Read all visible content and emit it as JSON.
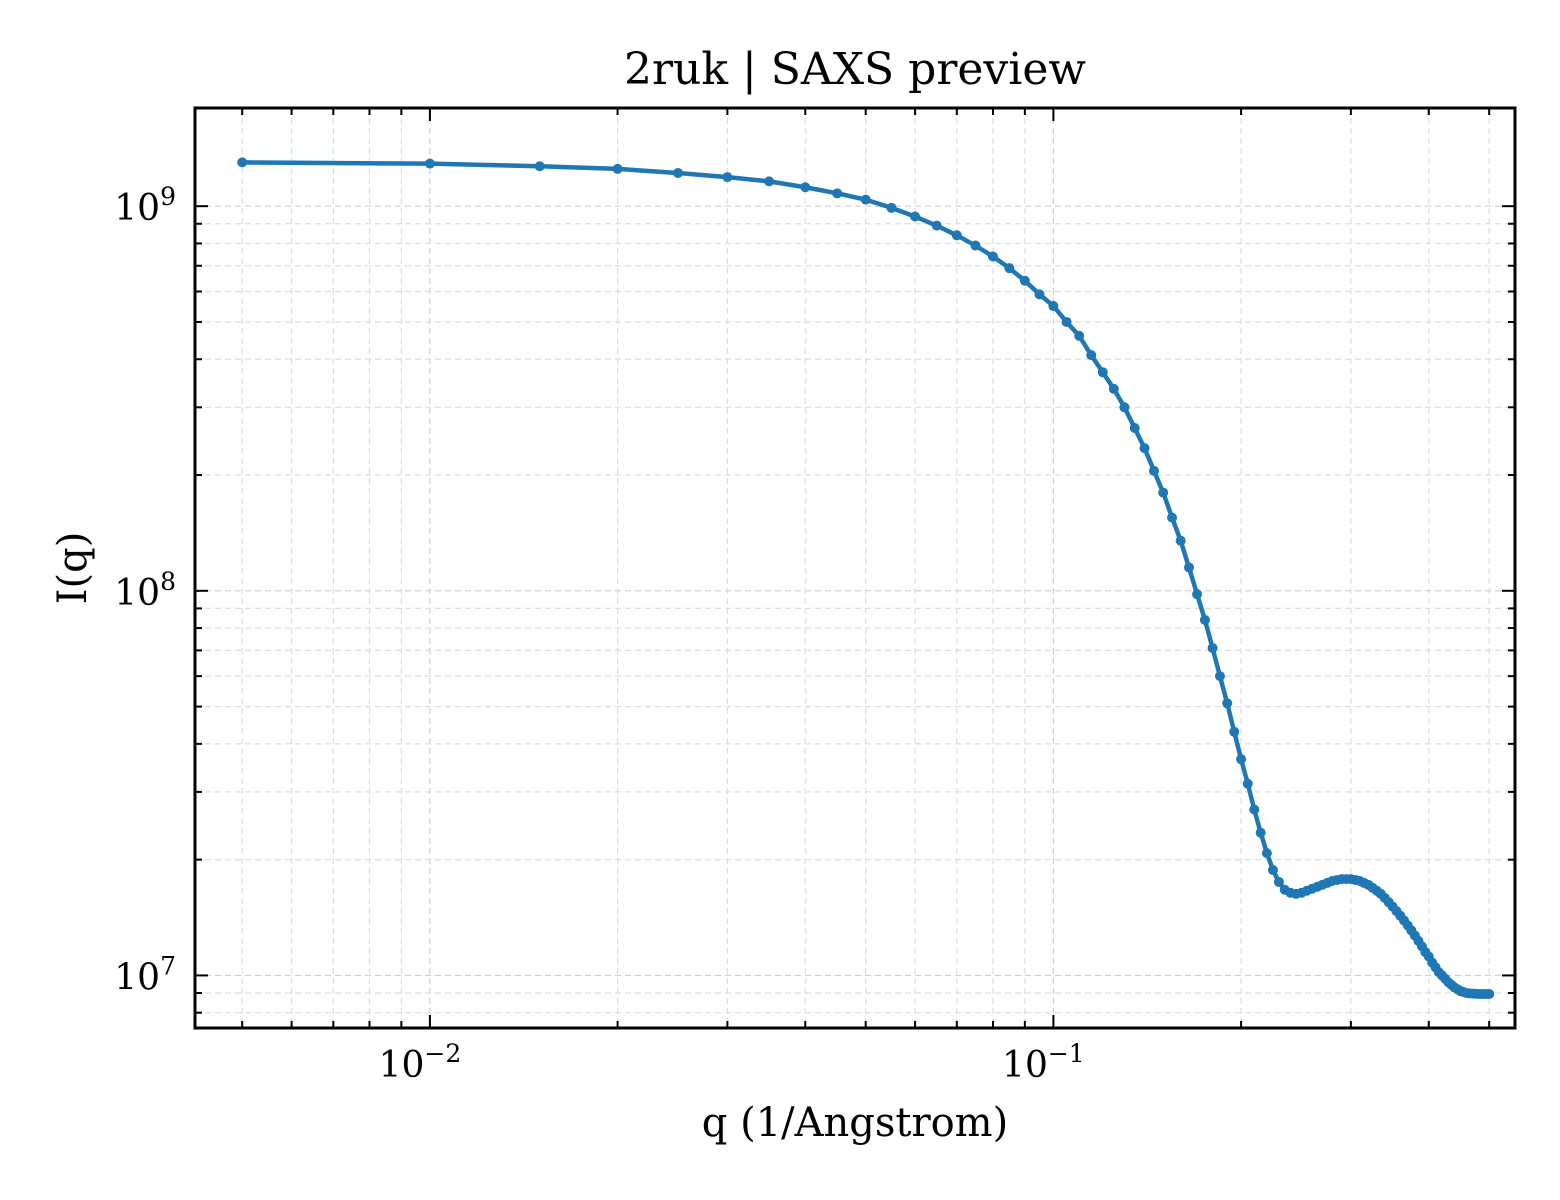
{
  "chart_data": {
    "type": "line",
    "title": "2ruk | SAXS preview",
    "xlabel": "q (1/Angstrom)",
    "ylabel": "I(q)",
    "xscale": "log",
    "yscale": "log",
    "xlim": [
      0.0042,
      0.55
    ],
    "ylim": [
      7300000.0,
      1800000000.0
    ],
    "x_ticks": [
      {
        "value": 0.01,
        "base": "10",
        "exp": "−2"
      },
      {
        "value": 0.1,
        "base": "10",
        "exp": "−1"
      }
    ],
    "y_ticks": [
      {
        "value": 10000000.0,
        "base": "10",
        "exp": "7"
      },
      {
        "value": 100000000.0,
        "base": "10",
        "exp": "8"
      },
      {
        "value": 1000000000.0,
        "base": "10",
        "exp": "9"
      }
    ],
    "grid": true,
    "legend": "none",
    "color": "#1f77b4",
    "series": [
      {
        "x": [
          0.005,
          0.01,
          0.015,
          0.02,
          0.025,
          0.03,
          0.035,
          0.04,
          0.045,
          0.05,
          0.055,
          0.06,
          0.065,
          0.07,
          0.075,
          0.08,
          0.085,
          0.09,
          0.095,
          0.1,
          0.105,
          0.11,
          0.115,
          0.12,
          0.125,
          0.13,
          0.135,
          0.14,
          0.145,
          0.15,
          0.155,
          0.16,
          0.165,
          0.17,
          0.175,
          0.18,
          0.185,
          0.19,
          0.195,
          0.2,
          0.205,
          0.21,
          0.215,
          0.22,
          0.225,
          0.23,
          0.235,
          0.24,
          0.245,
          0.25,
          0.255,
          0.26,
          0.265,
          0.27,
          0.275,
          0.28,
          0.285,
          0.29,
          0.295,
          0.3,
          0.305,
          0.31,
          0.315,
          0.32,
          0.325,
          0.33,
          0.335,
          0.34,
          0.345,
          0.35,
          0.355,
          0.36,
          0.365,
          0.37,
          0.375,
          0.38,
          0.385,
          0.39,
          0.395,
          0.4,
          0.405,
          0.41,
          0.415,
          0.42,
          0.425,
          0.43,
          0.435,
          0.44,
          0.445,
          0.45,
          0.455,
          0.46,
          0.465,
          0.47,
          0.475,
          0.48,
          0.485,
          0.49,
          0.495,
          0.5
        ],
        "y": [
          1300000000.0,
          1290000000.0,
          1270000000.0,
          1250000000.0,
          1220000000.0,
          1190000000.0,
          1160000000.0,
          1120000000.0,
          1080000000.0,
          1040000000.0,
          990000000.0,
          940000000.0,
          890000000.0,
          840000000.0,
          790000000.0,
          740000000.0,
          690000000.0,
          640000000.0,
          590000000.0,
          550000000.0,
          500000000.0,
          460000000.0,
          410000000.0,
          370000000.0,
          335000000.0,
          300000000.0,
          265000000.0,
          235000000.0,
          205000000.0,
          180000000.0,
          155000000.0,
          135000000.0,
          115000000.0,
          98000000.0,
          84000000.0,
          71000000.0,
          60000000.0,
          51000000.0,
          43000000.0,
          36500000.0,
          31500000.0,
          27000000.0,
          23500000.0,
          20800000.0,
          18800000.0,
          17500000.0,
          16700000.0,
          16400000.0,
          16300000.0,
          16400000.0,
          16600000.0,
          16800000.0,
          17000000.0,
          17200000.0,
          17400000.0,
          17600000.0,
          17700000.0,
          17800000.0,
          17800000.0,
          17800000.0,
          17700000.0,
          17600000.0,
          17400000.0,
          17200000.0,
          16900000.0,
          16600000.0,
          16300000.0,
          15900000.0,
          15500000.0,
          15100000.0,
          14700000.0,
          14300000.0,
          13900000.0,
          13500000.0,
          13100000.0,
          12700000.0,
          12300000.0,
          11900000.0,
          11500000.0,
          11200000.0,
          10800000.0,
          10500000.0,
          10200000.0,
          10000000.0,
          9800000.0,
          9600000.0,
          9450000.0,
          9300000.0,
          9200000.0,
          9100000.0,
          9050000.0,
          9000000.0,
          8980000.0,
          8970000.0,
          8960000.0,
          8950000.0,
          8950000.0,
          8950000.0,
          8950000.0,
          8950000.0
        ]
      }
    ]
  }
}
